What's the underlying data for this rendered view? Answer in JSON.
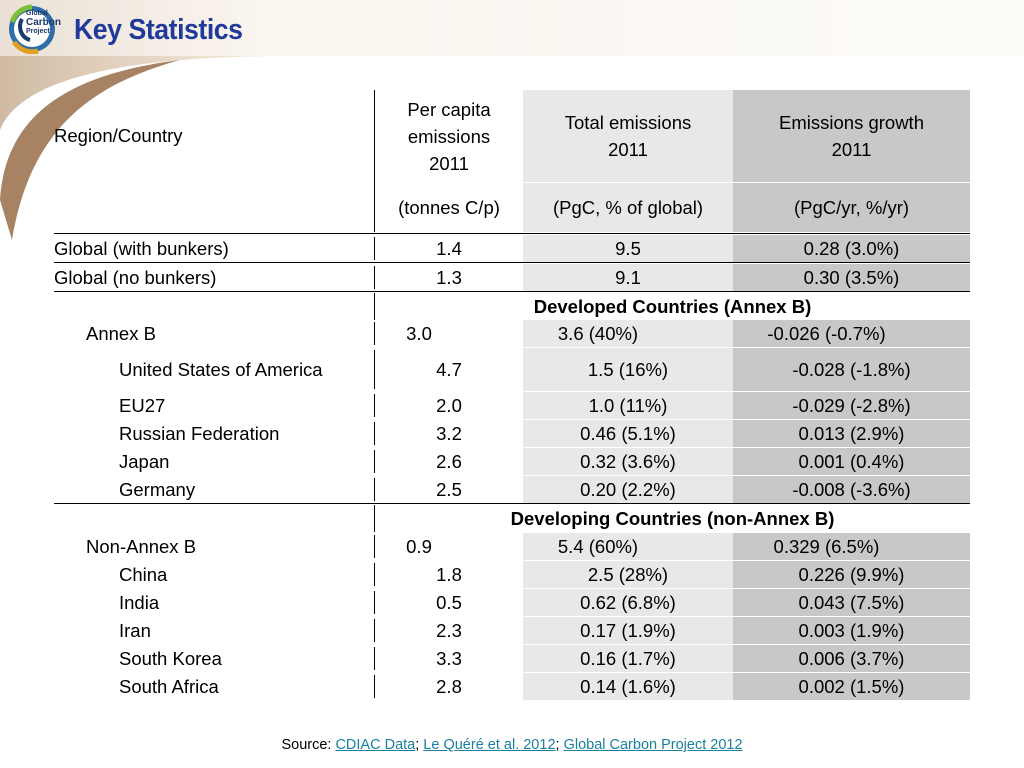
{
  "title": "Key Statistics",
  "logo": {
    "line1": "Global",
    "line2": "Carbon",
    "line3": "Project"
  },
  "table": {
    "header": {
      "col0": "Region/Country",
      "col1_lines": [
        "Per capita",
        "emissions",
        "2011"
      ],
      "col2_lines": [
        "Total emissions",
        "2011"
      ],
      "col3_lines": [
        "Emissions growth",
        "2011"
      ],
      "unit1": "(tonnes C/p)",
      "unit2": "(PgC, % of global)",
      "unit3": "(PgC/yr, %/yr)"
    },
    "global": [
      {
        "region": "Global (with bunkers)",
        "per_capita": "1.4",
        "total": "9.5",
        "growth": "0.28 (3.0%)"
      },
      {
        "region": "Global (no bunkers)",
        "per_capita": "1.3",
        "total": "9.1",
        "growth": "0.30 (3.5%)"
      }
    ],
    "developed_label": "Developed Countries (Annex B)",
    "annex_b": {
      "region": "Annex B",
      "per_capita": "3.0",
      "total": "3.6 (40%)",
      "growth": "-0.026 (-0.7%)"
    },
    "developed": [
      {
        "region": "United States of America",
        "per_capita": "4.7",
        "total": "1.5 (16%)",
        "growth": "-0.028 (-1.8%)"
      },
      {
        "region": "EU27",
        "per_capita": "2.0",
        "total": "1.0 (11%)",
        "growth": "-0.029 (-2.8%)"
      },
      {
        "region": "Russian Federation",
        "per_capita": "3.2",
        "total": "0.46 (5.1%)",
        "growth": "0.013 (2.9%)"
      },
      {
        "region": "Japan",
        "per_capita": "2.6",
        "total": "0.32 (3.6%)",
        "growth": "0.001 (0.4%)"
      },
      {
        "region": "Germany",
        "per_capita": "2.5",
        "total": "0.20 (2.2%)",
        "growth": "-0.008 (-3.6%)"
      }
    ],
    "developing_label": "Developing Countries (non-Annex B)",
    "non_annex_b": {
      "region": "Non-Annex B",
      "per_capita": "0.9",
      "total": "5.4 (60%)",
      "growth": "0.329 (6.5%)"
    },
    "developing": [
      {
        "region": "China",
        "per_capita": "1.8",
        "total": "2.5 (28%)",
        "growth": "0.226 (9.9%)"
      },
      {
        "region": "India",
        "per_capita": "0.5",
        "total": "0.62 (6.8%)",
        "growth": "0.043 (7.5%)"
      },
      {
        "region": "Iran",
        "per_capita": "2.3",
        "total": "0.17 (1.9%)",
        "growth": "0.003 (1.9%)"
      },
      {
        "region": "South Korea",
        "per_capita": "3.3",
        "total": "0.16 (1.7%)",
        "growth": "0.006 (3.7%)"
      },
      {
        "region": "South Africa",
        "per_capita": "2.8",
        "total": "0.14 (1.6%)",
        "growth": "0.002 (1.5%)"
      }
    ]
  },
  "source": {
    "prefix": "Source: ",
    "links": [
      "CDIAC Data",
      "Le Quéré et al. 2012",
      "Global Carbon Project 2012"
    ],
    "separator": "; "
  },
  "colors": {
    "title": "#1f3a9a",
    "link": "#1a7fa0",
    "col2_bg": "#e8e8e8",
    "col3_bg": "#c8c8c8"
  }
}
